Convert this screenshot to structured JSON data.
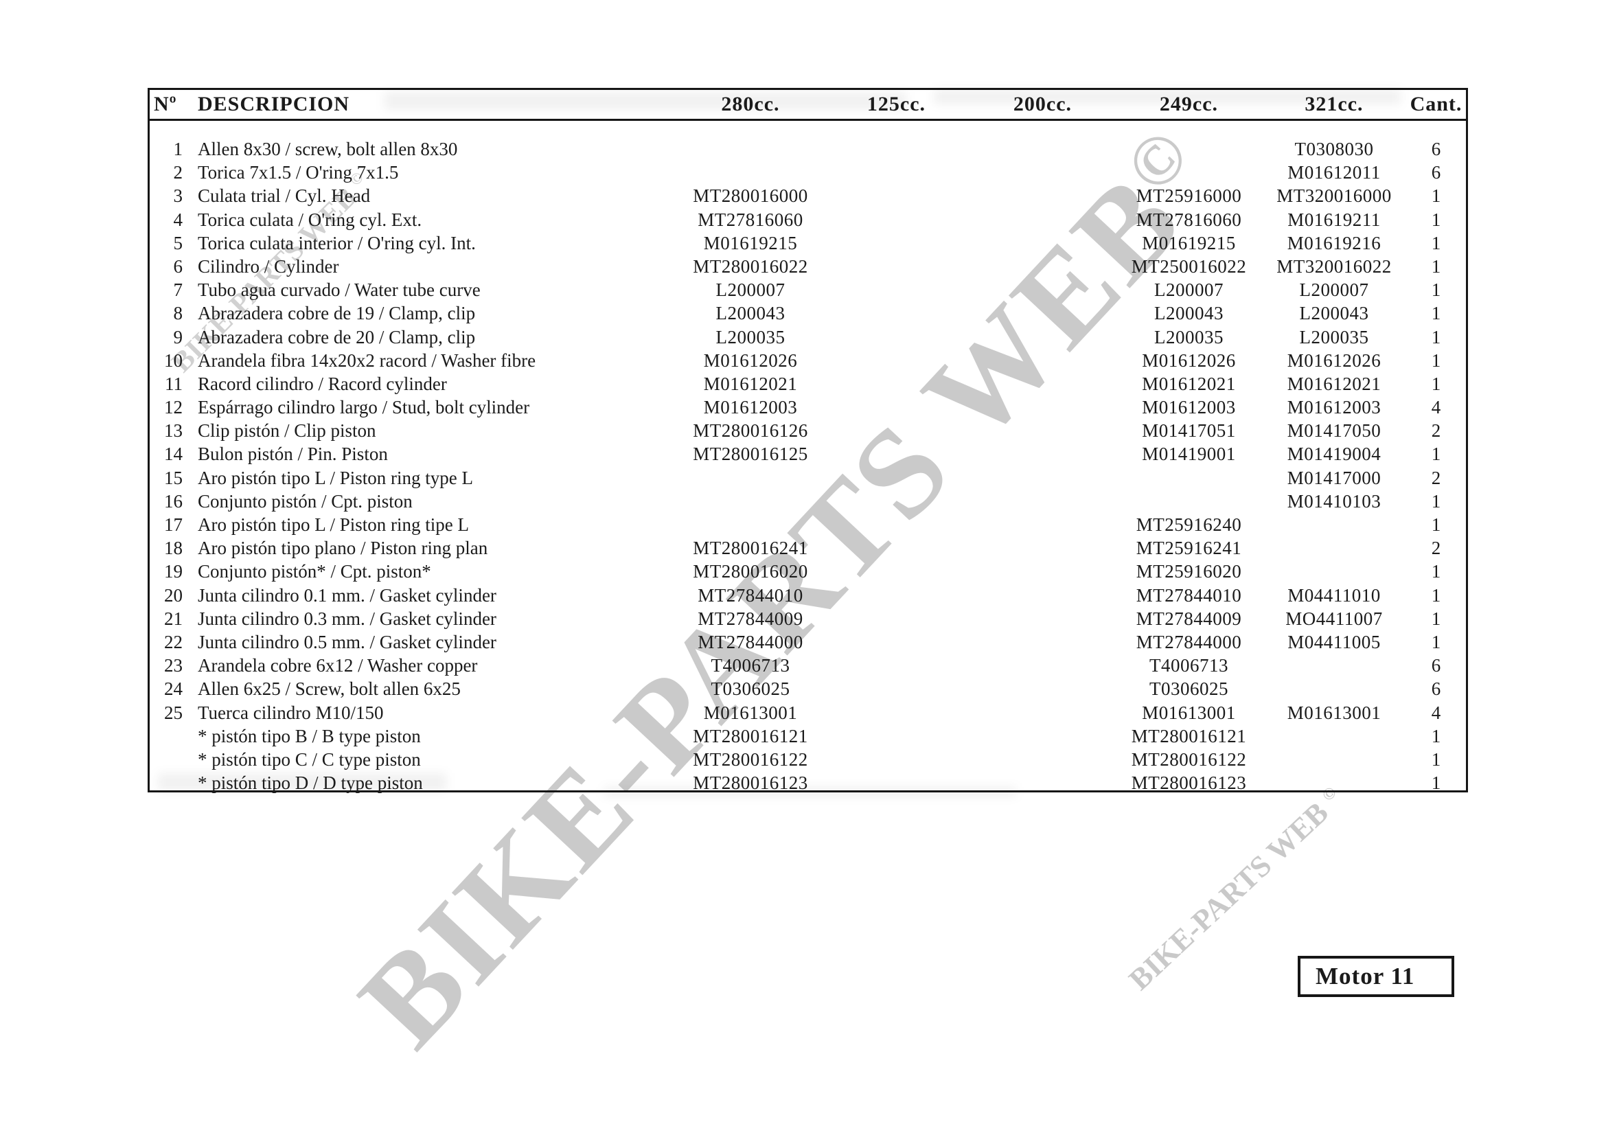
{
  "page": {
    "watermark_text": "BIKE-PARTS WEB",
    "watermark_copyright": "©",
    "motor_label": "Motor 11"
  },
  "table": {
    "headers": {
      "num": "Nº",
      "descripcion": "DESCRIPCION",
      "c280": "280cc.",
      "c125": "125cc.",
      "c200": "200cc.",
      "c249": "249cc.",
      "c321": "321cc.",
      "cant": "Cant."
    },
    "rows": [
      [
        "1",
        "Allen 8x30 / screw, bolt allen 8x30",
        "",
        "",
        "",
        "",
        "T0308030",
        "6"
      ],
      [
        "2",
        "Torica 7x1.5 / O'ring 7x1.5",
        "",
        "",
        "",
        "",
        "M01612011",
        "6"
      ],
      [
        "3",
        "Culata trial  / Cyl. Head",
        "MT280016000",
        "",
        "",
        "MT25916000",
        "MT320016000",
        "1"
      ],
      [
        "4",
        "Torica culata / O'ring cyl. Ext.",
        "MT27816060",
        "",
        "",
        "MT27816060",
        "M01619211",
        "1"
      ],
      [
        "5",
        "Torica culata interior / O'ring cyl. Int.",
        "M01619215",
        "",
        "",
        "M01619215",
        "M01619216",
        "1"
      ],
      [
        "6",
        "Cilindro / Cylinder",
        "MT280016022",
        "",
        "",
        "MT250016022",
        "MT320016022",
        "1"
      ],
      [
        "7",
        "Tubo agua curvado / Water tube curve",
        "L200007",
        "",
        "",
        "L200007",
        "L200007",
        "1"
      ],
      [
        "8",
        "Abrazadera cobre de 19 / Clamp, clip",
        "L200043",
        "",
        "",
        "L200043",
        "L200043",
        "1"
      ],
      [
        "9",
        "Abrazadera cobre de 20 / Clamp, clip",
        "L200035",
        "",
        "",
        "L200035",
        "L200035",
        "1"
      ],
      [
        "10",
        "Arandela fibra 14x20x2 racord / Washer fibre",
        "M01612026",
        "",
        "",
        "M01612026",
        "M01612026",
        "1"
      ],
      [
        "11",
        "Racord cilindro / Racord cylinder",
        "M01612021",
        "",
        "",
        "M01612021",
        "M01612021",
        "1"
      ],
      [
        "12",
        "Espárrago cilindro largo / Stud, bolt cylinder",
        "M01612003",
        "",
        "",
        "M01612003",
        "M01612003",
        "4"
      ],
      [
        "13",
        "Clip pistón / Clip piston",
        "MT280016126",
        "",
        "",
        "M01417051",
        "M01417050",
        "2"
      ],
      [
        "14",
        "Bulon pistón / Pin. Piston",
        "MT280016125",
        "",
        "",
        "M01419001",
        "M01419004",
        "1"
      ],
      [
        "15",
        "Aro pistón tipo L / Piston ring type L",
        "",
        "",
        "",
        "",
        "M01417000",
        "2"
      ],
      [
        "16",
        "Conjunto pistón / Cpt. piston",
        "",
        "",
        "",
        "",
        "M01410103",
        "1"
      ],
      [
        "17",
        "Aro pistón tipo L / Piston ring tipe L",
        "",
        "",
        "",
        "MT25916240",
        "",
        "1"
      ],
      [
        "18",
        "Aro pistón tipo plano / Piston ring plan",
        "MT280016241",
        "",
        "",
        "MT25916241",
        "",
        "2"
      ],
      [
        "19",
        "Conjunto pistón* / Cpt. piston*",
        "MT280016020",
        "",
        "",
        "MT25916020",
        "",
        "1"
      ],
      [
        "20",
        "Junta cilindro 0.1 mm. / Gasket cylinder",
        "MT27844010",
        "",
        "",
        "MT27844010",
        "M04411010",
        "1"
      ],
      [
        "21",
        "Junta cilindro 0.3 mm. / Gasket cylinder",
        "MT27844009",
        "",
        "",
        "MT27844009",
        "MO4411007",
        "1"
      ],
      [
        "22",
        "Junta cilindro 0.5 mm. / Gasket cylinder",
        "MT27844000",
        "",
        "",
        "MT27844000",
        "M04411005",
        "1"
      ],
      [
        "23",
        "Arandela cobre 6x12 / Washer copper",
        "T4006713",
        "",
        "",
        "T4006713",
        "",
        "6"
      ],
      [
        "24",
        "Allen 6x25 / Screw, bolt allen 6x25",
        "T0306025",
        "",
        "",
        "T0306025",
        "",
        "6"
      ],
      [
        "25",
        "Tuerca cilindro M10/150",
        "M01613001",
        "",
        "",
        "M01613001",
        "M01613001",
        "4"
      ],
      [
        "",
        "* pistón tipo B / B type piston",
        "MT280016121",
        "",
        "",
        "MT280016121",
        "",
        "1"
      ],
      [
        "",
        "* pistón tipo C / C type piston",
        "MT280016122",
        "",
        "",
        "MT280016122",
        "",
        "1"
      ],
      [
        "",
        "* pistón tipo D / D type piston",
        "MT280016123",
        "",
        "",
        "MT280016123",
        "",
        "1"
      ]
    ]
  }
}
